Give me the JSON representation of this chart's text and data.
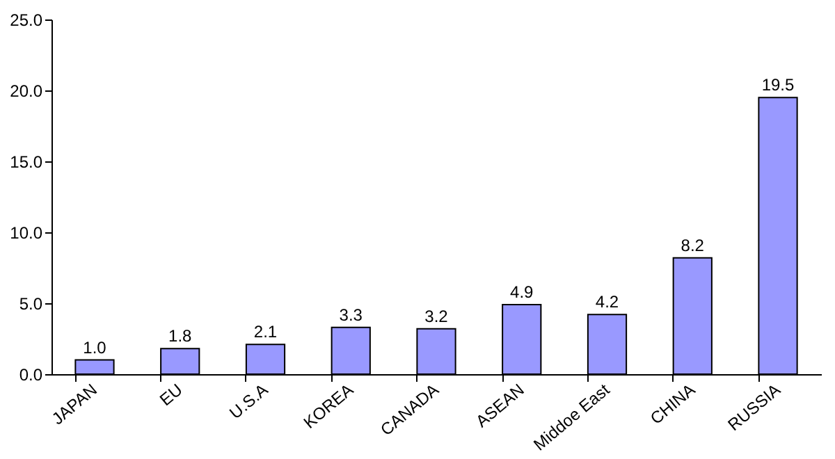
{
  "chart_data": {
    "type": "bar",
    "categories": [
      "JAPAN",
      "EU",
      "U.S.A",
      "KOREA",
      "CANADA",
      "ASEAN",
      "Middoe East",
      "CHINA",
      "RUSSIA"
    ],
    "values": [
      1.0,
      1.8,
      2.1,
      3.3,
      3.2,
      4.9,
      4.2,
      8.2,
      19.5
    ],
    "value_labels": [
      "1.0",
      "1.8",
      "2.1",
      "3.3",
      "3.2",
      "4.9",
      "4.2",
      "8.2",
      "19.5"
    ],
    "color": "#9999ff",
    "ylim": [
      0,
      25
    ],
    "yticks": [
      {
        "value": 0,
        "label": "0.0"
      },
      {
        "value": 5,
        "label": "5.0"
      },
      {
        "value": 10,
        "label": "10.0"
      },
      {
        "value": 15,
        "label": "15.0"
      },
      {
        "value": 20,
        "label": "20.0"
      },
      {
        "value": 25,
        "label": "25.0"
      }
    ],
    "grid": false
  }
}
